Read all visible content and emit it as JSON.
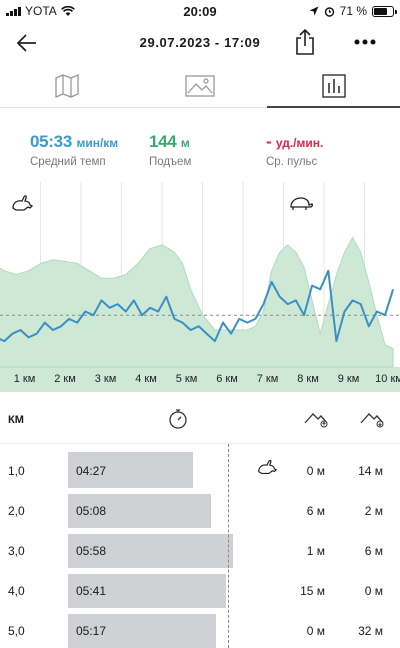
{
  "status": {
    "carrier": "YOTA",
    "time": "20:09",
    "battery": "71 %",
    "battery_level": 0.71
  },
  "header": {
    "title": "29.07.2023 - 17:09"
  },
  "tabs": [
    {
      "name": "map-icon",
      "active": false
    },
    {
      "name": "image-icon",
      "active": false
    },
    {
      "name": "stats-icon",
      "active": true
    }
  ],
  "stats": {
    "pace": {
      "value": "05:33",
      "unit": "мин/км",
      "label": "Средний темп",
      "color": "#3a9bd1"
    },
    "ascent": {
      "value": "144",
      "unit": "м",
      "label": "Подъем",
      "color": "#3aa876"
    },
    "pulse": {
      "value": "-",
      "unit": "уд./мин.",
      "label": "Ср. пульс",
      "color": "#e0244a"
    }
  },
  "chart_data": {
    "type": "line",
    "x_ticks": [
      "1 км",
      "2 км",
      "3 км",
      "4 км",
      "5 км",
      "6 км",
      "7 км",
      "8 км",
      "9 км",
      "10 км"
    ],
    "series": [
      {
        "kind": "area",
        "color": "#cde8d5",
        "x": [
          0,
          0.3,
          0.6,
          0.9,
          1.2,
          1.5,
          1.8,
          2.1,
          2.4,
          2.7,
          3.0,
          3.3,
          3.6,
          3.9,
          4.2,
          4.5,
          4.8,
          5.0,
          5.2,
          5.5,
          5.8,
          6.1,
          6.4,
          6.6,
          6.8,
          7.0,
          7.2,
          7.4,
          7.6,
          7.8,
          8.0,
          8.2,
          8.4,
          8.6,
          8.8,
          9.0,
          9.2,
          9.4,
          9.6,
          9.8,
          10.0,
          10.2
        ],
        "y": [
          0.58,
          0.56,
          0.52,
          0.5,
          0.52,
          0.56,
          0.58,
          0.57,
          0.56,
          0.52,
          0.48,
          0.48,
          0.5,
          0.56,
          0.64,
          0.66,
          0.62,
          0.56,
          0.42,
          0.28,
          0.2,
          0.2,
          0.2,
          0.2,
          0.22,
          0.3,
          0.52,
          0.62,
          0.66,
          0.62,
          0.54,
          0.36,
          0.18,
          0.34,
          0.5,
          0.62,
          0.7,
          0.62,
          0.46,
          0.28,
          0.12,
          0.1
        ]
      },
      {
        "kind": "line",
        "color": "#3a90c4",
        "x": [
          0,
          0.2,
          0.4,
          0.6,
          0.8,
          1.0,
          1.2,
          1.4,
          1.6,
          1.8,
          2.0,
          2.2,
          2.4,
          2.6,
          2.8,
          3.0,
          3.2,
          3.4,
          3.6,
          3.8,
          4.0,
          4.2,
          4.4,
          4.6,
          4.8,
          5.0,
          5.2,
          5.4,
          5.6,
          5.8,
          6.0,
          6.2,
          6.4,
          6.6,
          6.8,
          7.0,
          7.2,
          7.4,
          7.6,
          7.8,
          8.0,
          8.2,
          8.4,
          8.6,
          8.8,
          9.0,
          9.2,
          9.4,
          9.6,
          9.8,
          10.0,
          10.2
        ],
        "y": [
          0.2,
          0.2,
          0.16,
          0.14,
          0.18,
          0.2,
          0.16,
          0.18,
          0.24,
          0.2,
          0.22,
          0.26,
          0.24,
          0.3,
          0.28,
          0.36,
          0.32,
          0.34,
          0.3,
          0.36,
          0.28,
          0.32,
          0.3,
          0.38,
          0.26,
          0.24,
          0.2,
          0.22,
          0.18,
          0.14,
          0.24,
          0.18,
          0.26,
          0.24,
          0.26,
          0.34,
          0.46,
          0.38,
          0.34,
          0.36,
          0.28,
          0.44,
          0.42,
          0.52,
          0.14,
          0.3,
          0.36,
          0.34,
          0.22,
          0.3,
          0.28,
          0.42
        ]
      }
    ],
    "icons": [
      "rabbit-icon",
      "turtle-icon"
    ]
  },
  "table": {
    "header_km": "КМ",
    "rows": [
      {
        "km": "1,0",
        "pace": "04:27",
        "up": "0 м",
        "down": "14 м",
        "fraction": 0.5,
        "fastest": true
      },
      {
        "km": "2,0",
        "pace": "05:08",
        "up": "6 м",
        "down": "2 м",
        "fraction": 0.57,
        "fastest": false
      },
      {
        "km": "3,0",
        "pace": "05:58",
        "up": "1 м",
        "down": "6 м",
        "fraction": 0.66,
        "fastest": false
      },
      {
        "km": "4,0",
        "pace": "05:41",
        "up": "15 м",
        "down": "0 м",
        "fraction": 0.63,
        "fastest": false
      },
      {
        "km": "5,0",
        "pace": "05:17",
        "up": "0 м",
        "down": "32 м",
        "fraction": 0.59,
        "fastest": false
      }
    ]
  }
}
